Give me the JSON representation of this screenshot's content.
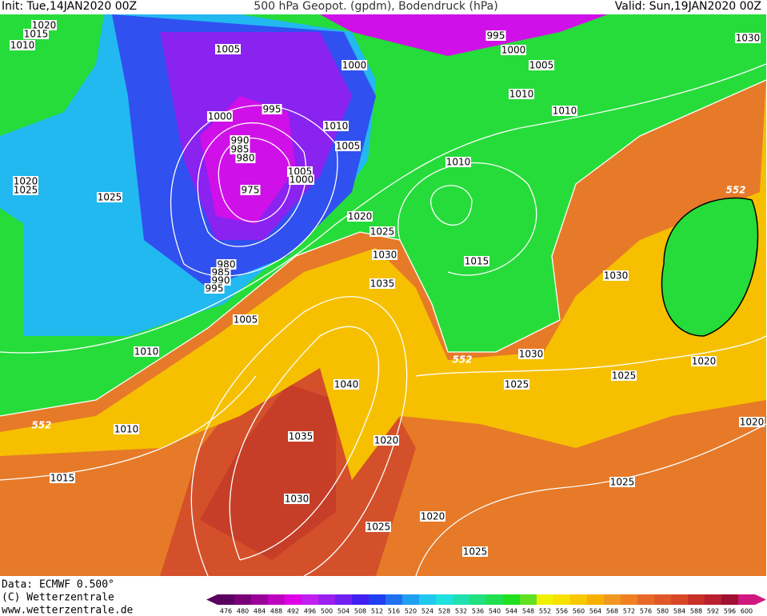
{
  "header": {
    "init": "Init: Tue,14JAN2020 00Z",
    "title": "500 hPa Geopot. (gpdm), Bodendruck (hPa)",
    "valid": "Valid: Sun,19JAN2020 00Z"
  },
  "footer": {
    "data": "Data: ECMWF  0.500°",
    "copyright": "(C) Wetterzentrale",
    "url": "www.wetterzentrale.de"
  },
  "colorbar": {
    "values": [
      476,
      480,
      484,
      488,
      492,
      496,
      500,
      504,
      508,
      512,
      516,
      520,
      524,
      528,
      532,
      536,
      540,
      544,
      548,
      552,
      556,
      560,
      564,
      568,
      572,
      576,
      580,
      584,
      588,
      592,
      596,
      600
    ],
    "colors": [
      "#5a0060",
      "#780078",
      "#9a009a",
      "#c000c0",
      "#e000e8",
      "#c020f0",
      "#9a20f0",
      "#7020f0",
      "#4020f0",
      "#2040f0",
      "#2070f0",
      "#20a0f0",
      "#20c8f0",
      "#20e0e0",
      "#20e0b0",
      "#20e080",
      "#20e050",
      "#20e020",
      "#60e020",
      "#f0f000",
      "#f8e000",
      "#f8c800",
      "#f8b000",
      "#f09820",
      "#f08020",
      "#e86828",
      "#e05828",
      "#d84828",
      "#c83028",
      "#b82030",
      "#a01030",
      "#d01880"
    ]
  },
  "isobar_labels": [
    "1020",
    "1015",
    "1010",
    "1005",
    "995",
    "1000",
    "1005",
    "1030",
    "1000",
    "1010",
    "1010",
    "995",
    "1000",
    "1010",
    "990",
    "985",
    "980",
    "1005",
    "1005",
    "1000",
    "975",
    "1010",
    "1020",
    "1025",
    "1025",
    "552",
    "1020",
    "1025",
    "1030",
    "1015",
    "1030",
    "980",
    "985",
    "990",
    "995",
    "1035",
    "1005",
    "1010",
    "552",
    "1030",
    "1025",
    "1020",
    "1040",
    "1025",
    "552",
    "1010",
    "1020",
    "1035",
    "1020",
    "1015",
    "1025",
    "1030",
    "1020",
    "1025",
    "1025"
  ]
}
